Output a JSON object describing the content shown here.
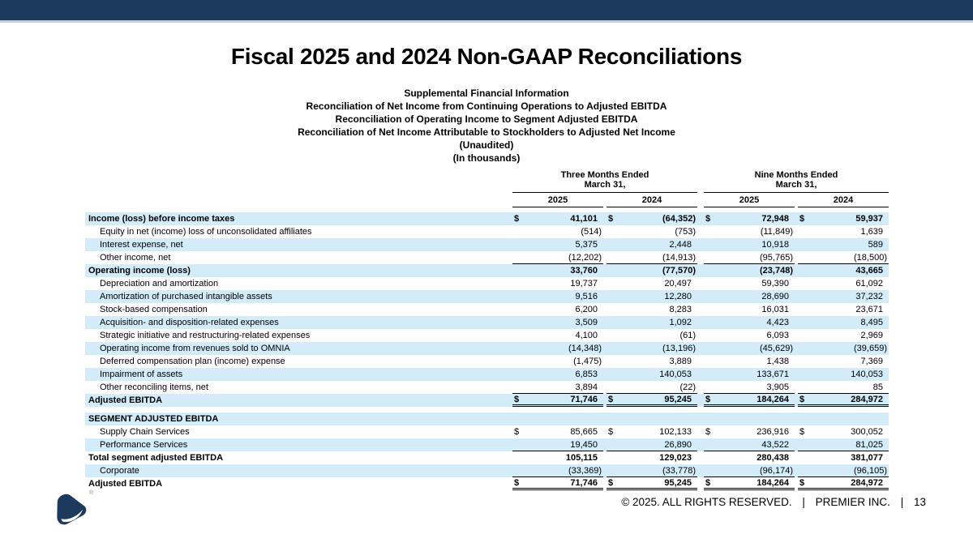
{
  "title": "Fiscal 2025 and 2024 Non-GAAP Reconciliations",
  "subtitles": [
    "Supplemental Financial Information",
    "Reconciliation of Net Income from Continuing Operations to Adjusted EBITDA",
    "Reconciliation of Operating Income to Segment Adjusted EBITDA",
    "Reconciliation of Net Income Attributable to Stockholders to Adjusted Net Income",
    "(Unaudited)",
    "(In thousands)"
  ],
  "table": {
    "groups": [
      {
        "line1": "Three Months Ended",
        "line2": "March 31,"
      },
      {
        "line1": "Nine Months Ended",
        "line2": "March 31,"
      }
    ],
    "years": [
      "2025",
      "2024",
      "2025",
      "2024"
    ],
    "rows": [
      {
        "label": "Income (loss) before income taxes",
        "bold": true,
        "shaded": true,
        "dollar": true,
        "boldValues": true,
        "values": [
          "41,101",
          "(64,352)",
          "72,948",
          "59,937"
        ]
      },
      {
        "label": "Equity in net (income) loss of unconsolidated affiliates",
        "indent": true,
        "values": [
          "(514)",
          "(753)",
          "(11,849)",
          "1,639"
        ]
      },
      {
        "label": "Interest expense, net",
        "indent": true,
        "shaded": true,
        "values": [
          "5,375",
          "2,448",
          "10,918",
          "589"
        ]
      },
      {
        "label": "Other income, net",
        "indent": true,
        "underline": "u-single",
        "values": [
          "(12,202)",
          "(14,913)",
          "(95,765)",
          "(18,500)"
        ]
      },
      {
        "label": "Operating income (loss)",
        "bold": true,
        "shaded": true,
        "boldValues": true,
        "values": [
          "33,760",
          "(77,570)",
          "(23,748)",
          "43,665"
        ]
      },
      {
        "label": "Depreciation and amortization",
        "indent": true,
        "values": [
          "19,737",
          "20,497",
          "59,390",
          "61,092"
        ]
      },
      {
        "label": "Amortization of purchased intangible assets",
        "indent": true,
        "shaded": true,
        "values": [
          "9,516",
          "12,280",
          "28,690",
          "37,232"
        ]
      },
      {
        "label": "Stock-based compensation",
        "indent": true,
        "values": [
          "6,200",
          "8,283",
          "16,031",
          "23,671"
        ]
      },
      {
        "label": "Acquisition- and disposition-related expenses",
        "indent": true,
        "shaded": true,
        "values": [
          "3,509",
          "1,092",
          "4,423",
          "8,495"
        ]
      },
      {
        "label": "Strategic initiative and restructuring-related expenses",
        "indent": true,
        "values": [
          "4,100",
          "(61)",
          "6,093",
          "2,969"
        ]
      },
      {
        "label": "Operating income from revenues sold to OMNIA",
        "indent": true,
        "shaded": true,
        "values": [
          "(14,348)",
          "(13,196)",
          "(45,629)",
          "(39,659)"
        ]
      },
      {
        "label": "Deferred compensation plan (income) expense",
        "indent": true,
        "values": [
          "(1,475)",
          "3,889",
          "1,438",
          "7,369"
        ]
      },
      {
        "label": "Impairment of assets",
        "indent": true,
        "shaded": true,
        "values": [
          "6,853",
          "140,053",
          "133,671",
          "140,053"
        ]
      },
      {
        "label": "Other reconciling items, net",
        "indent": true,
        "underline": "u-single",
        "values": [
          "3,894",
          "(22)",
          "3,905",
          "85"
        ]
      },
      {
        "label": "Adjusted EBITDA",
        "bold": true,
        "shaded": true,
        "dollar": true,
        "boldValues": true,
        "underline": "u-double",
        "values": [
          "71,746",
          "95,245",
          "184,264",
          "284,972"
        ]
      },
      {
        "spacer": true
      },
      {
        "label": "SEGMENT ADJUSTED EBITDA",
        "bold": true,
        "shaded": true,
        "values": []
      },
      {
        "label": "Supply Chain Services",
        "indent": true,
        "dollar": true,
        "values": [
          "85,665",
          "102,133",
          "236,916",
          "300,052"
        ]
      },
      {
        "label": "Performance Services",
        "indent": true,
        "shaded": true,
        "underline": "u-single",
        "values": [
          "19,450",
          "26,890",
          "43,522",
          "81,025"
        ]
      },
      {
        "label": "Total segment adjusted EBITDA",
        "bold": true,
        "boldValues": true,
        "values": [
          "105,115",
          "129,023",
          "280,438",
          "381,077"
        ]
      },
      {
        "label": "Corporate",
        "indent": true,
        "shaded": true,
        "underline": "u-single",
        "values": [
          "(33,369)",
          "(33,778)",
          "(96,174)",
          "(96,105)"
        ]
      },
      {
        "label": "Adjusted EBITDA",
        "bold": true,
        "dollar": true,
        "boldValues": true,
        "underline": "u-double",
        "values": [
          "71,746",
          "95,245",
          "184,264",
          "284,972"
        ]
      }
    ]
  },
  "footer": {
    "copyright": "© 2025. ALL RIGHTS RESERVED.",
    "separator": "|",
    "company": "PREMIER INC.",
    "page": "13"
  },
  "logo": {
    "registered": "®"
  },
  "colors": {
    "accent_navy": "#1b3a5c",
    "row_shade": "#d2ecfa",
    "bar_edge": "#c4d1d6"
  }
}
